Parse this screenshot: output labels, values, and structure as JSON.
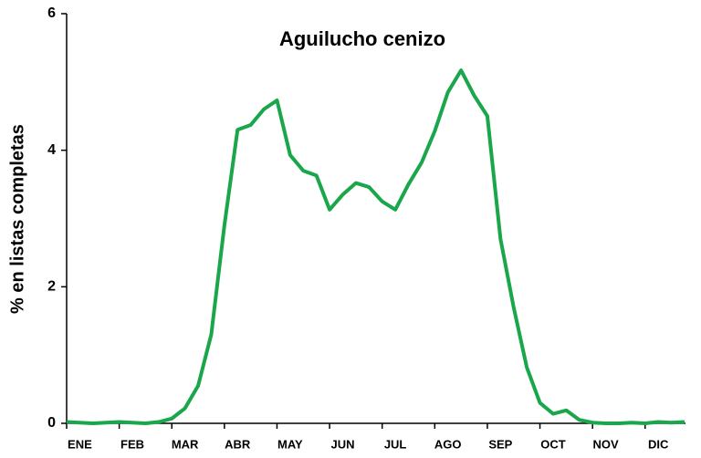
{
  "chart_data": {
    "type": "line",
    "title": "Aguilucho cenizo",
    "y_label": "% en listas completas",
    "categories": [
      null,
      "ENE",
      null,
      null,
      null,
      "FEB",
      null,
      null,
      null,
      "MAR",
      null,
      null,
      null,
      "ABR",
      null,
      null,
      null,
      "MAY",
      null,
      null,
      null,
      "JUN",
      null,
      null,
      null,
      "JUL",
      null,
      null,
      null,
      "AGO",
      null,
      null,
      null,
      "SEP",
      null,
      null,
      null,
      "OCT",
      null,
      null,
      null,
      "NOV",
      null,
      null,
      null,
      "DIC",
      null,
      null
    ],
    "series": [
      {
        "name": "Aguilucho cenizo",
        "color": "#1aa64a",
        "values": [
          0.02,
          0.01,
          0.0,
          0.01,
          0.02,
          0.01,
          0.0,
          0.02,
          0.07,
          0.22,
          0.55,
          1.3,
          2.9,
          4.3,
          4.37,
          4.6,
          4.73,
          3.93,
          3.7,
          3.63,
          3.13,
          3.35,
          3.52,
          3.46,
          3.25,
          3.13,
          3.5,
          3.82,
          4.28,
          4.85,
          5.17,
          4.8,
          4.5,
          2.7,
          1.7,
          0.82,
          0.3,
          0.14,
          0.19,
          0.05,
          0.01,
          0.0,
          0.0,
          0.01,
          0.0,
          0.02,
          0.01,
          0.02
        ]
      }
    ],
    "ylim": [
      0,
      6
    ],
    "yticks": [
      0,
      2,
      4,
      6
    ],
    "grid": false
  }
}
